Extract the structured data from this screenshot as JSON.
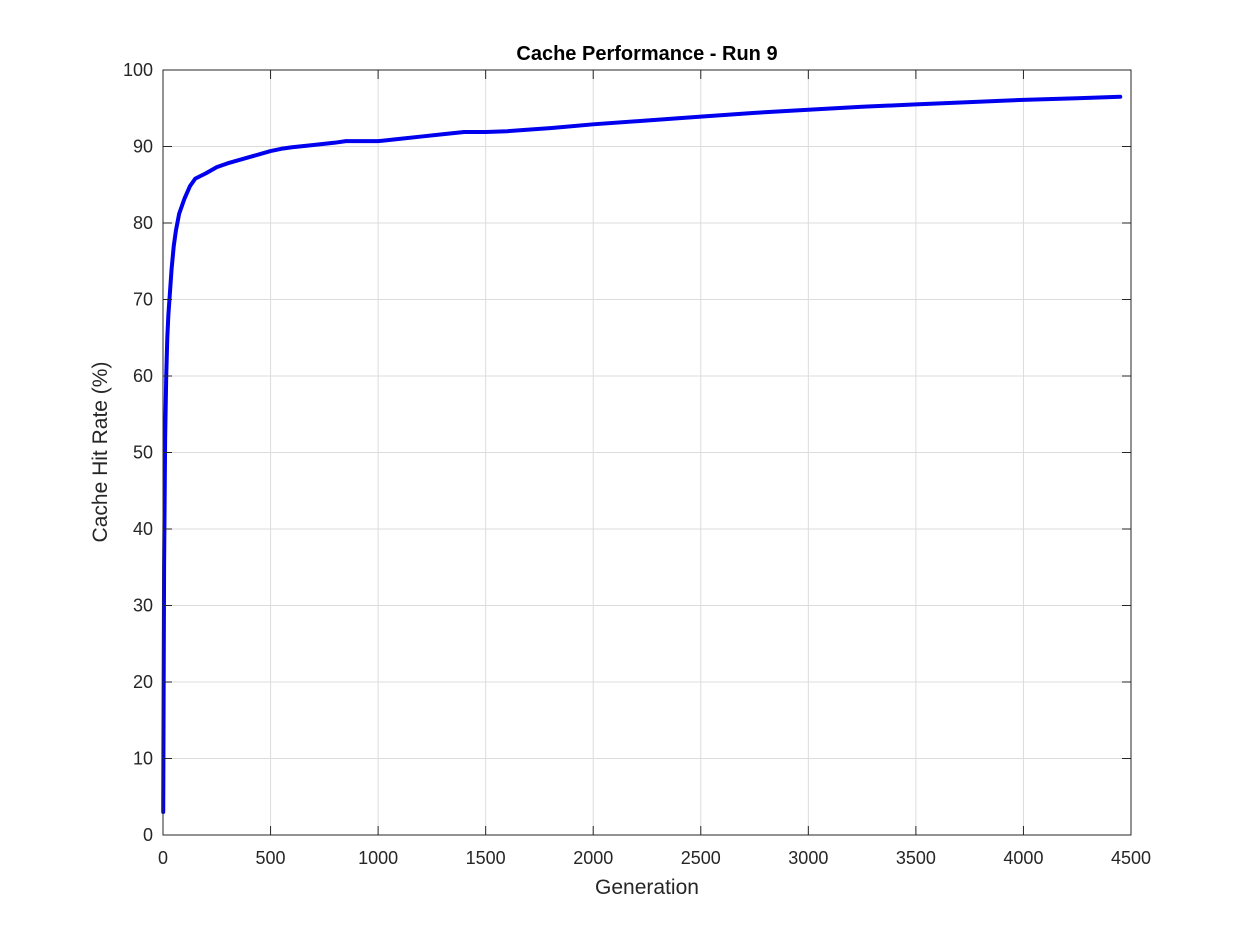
{
  "chart_data": {
    "type": "line",
    "title": "Cache Performance - Run 9",
    "xlabel": "Generation",
    "ylabel": "Cache Hit Rate (%)",
    "xlim": [
      0,
      4500
    ],
    "ylim": [
      0,
      100
    ],
    "xticks": [
      0,
      500,
      1000,
      1500,
      2000,
      2500,
      3000,
      3500,
      4000,
      4500
    ],
    "yticks": [
      0,
      10,
      20,
      30,
      40,
      50,
      60,
      70,
      80,
      90,
      100
    ],
    "grid": true,
    "series": [
      {
        "color": "#0000ee",
        "x": [
          1,
          5,
          10,
          15,
          20,
          25,
          30,
          40,
          50,
          60,
          75,
          100,
          125,
          150,
          200,
          250,
          300,
          400,
          500,
          550,
          600,
          700,
          800,
          850,
          900,
          1000,
          1100,
          1200,
          1300,
          1400,
          1500,
          1600,
          1700,
          1800,
          2000,
          2250,
          2500,
          2750,
          3000,
          3250,
          3500,
          3750,
          4000,
          4250,
          4450
        ],
        "y": [
          3,
          35,
          52,
          60,
          65,
          68,
          70,
          74,
          77,
          79,
          81.2,
          83.2,
          84.8,
          85.8,
          86.5,
          87.3,
          87.8,
          88.6,
          89.4,
          89.7,
          89.9,
          90.2,
          90.5,
          90.7,
          90.7,
          90.7,
          91.0,
          91.3,
          91.6,
          91.9,
          91.9,
          92.0,
          92.2,
          92.4,
          92.9,
          93.4,
          93.9,
          94.4,
          94.8,
          95.2,
          95.5,
          95.8,
          96.1,
          96.3,
          96.5
        ]
      }
    ]
  }
}
